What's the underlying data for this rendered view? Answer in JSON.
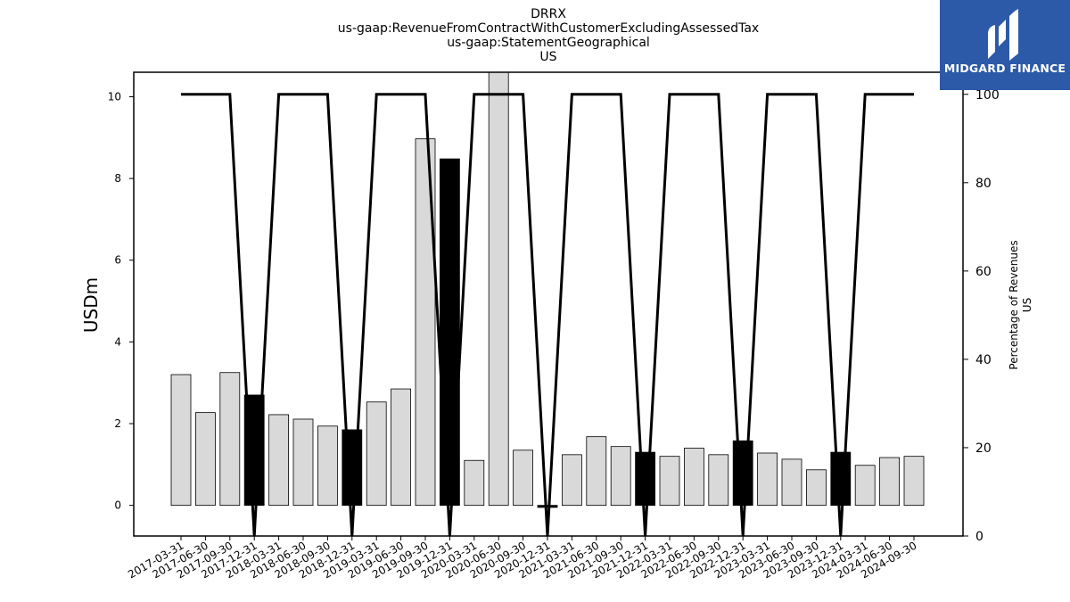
{
  "chart_data": {
    "type": "bar",
    "title_lines": [
      "DRRX",
      "us-gaap:RevenueFromContractWithCustomerExcludingAssessedTax",
      "us-gaap:StatementGeographical",
      "US"
    ],
    "ylabel": "USDm",
    "ylabel_right_lines": [
      "Percentage of Revenues",
      "US"
    ],
    "categories": [
      "2017-03-31",
      "2017-06-30",
      "2017-09-30",
      "2017-12-31",
      "2018-03-31",
      "2018-06-30",
      "2018-09-30",
      "2018-12-31",
      "2019-03-31",
      "2019-06-30",
      "2019-09-30",
      "2019-12-31",
      "2020-03-31",
      "2020-06-30",
      "2020-09-30",
      "2020-12-31",
      "2021-03-31",
      "2021-06-30",
      "2021-09-30",
      "2021-12-31",
      "2022-03-31",
      "2022-06-30",
      "2022-09-30",
      "2022-12-31",
      "2023-03-31",
      "2023-06-30",
      "2023-09-30",
      "2023-12-31",
      "2024-03-31",
      "2024-06-30",
      "2024-09-30"
    ],
    "bar_positions": [
      0,
      1,
      2,
      3,
      4,
      5,
      6,
      7,
      8,
      9,
      10,
      11,
      12,
      13,
      14,
      15,
      16,
      17,
      18,
      19,
      20,
      21,
      22,
      23,
      24,
      25,
      26,
      27,
      28,
      29,
      30
    ],
    "values": [
      3.2,
      2.27,
      3.25,
      2.7,
      2.22,
      2.11,
      1.94,
      1.85,
      2.53,
      2.85,
      8.97,
      8.48,
      1.1,
      10.6,
      1.35,
      -0.05,
      1.24,
      1.68,
      1.44,
      1.3,
      1.2,
      1.4,
      1.24,
      1.58,
      1.28,
      1.13,
      0.87,
      1.3,
      0.98,
      1.17,
      1.2
    ],
    "highlight": [
      false,
      false,
      false,
      true,
      false,
      false,
      false,
      true,
      false,
      false,
      false,
      true,
      false,
      false,
      false,
      true,
      false,
      false,
      false,
      true,
      false,
      false,
      false,
      true,
      false,
      false,
      false,
      true,
      false,
      false,
      false
    ],
    "percentage": [
      100,
      100,
      100,
      0,
      100,
      100,
      100,
      0,
      100,
      100,
      100,
      0,
      100,
      100,
      100,
      0,
      100,
      100,
      100,
      0,
      100,
      100,
      100,
      0,
      100,
      100,
      100,
      0,
      100,
      100,
      100
    ],
    "ylim": [
      -0.75,
      10.6
    ],
    "yticks": [
      0,
      2,
      4,
      6,
      8,
      10
    ],
    "ylim_right": [
      0,
      105
    ],
    "yticks_right": [
      0,
      20,
      40,
      60,
      80,
      100
    ],
    "colors": {
      "bar": "#d9d9d9",
      "highlight": "#000000",
      "line": "#000000",
      "edge": "#000000"
    }
  },
  "logo": {
    "text": "MIDGARD FINANCE",
    "background": "#2c5aa8"
  }
}
